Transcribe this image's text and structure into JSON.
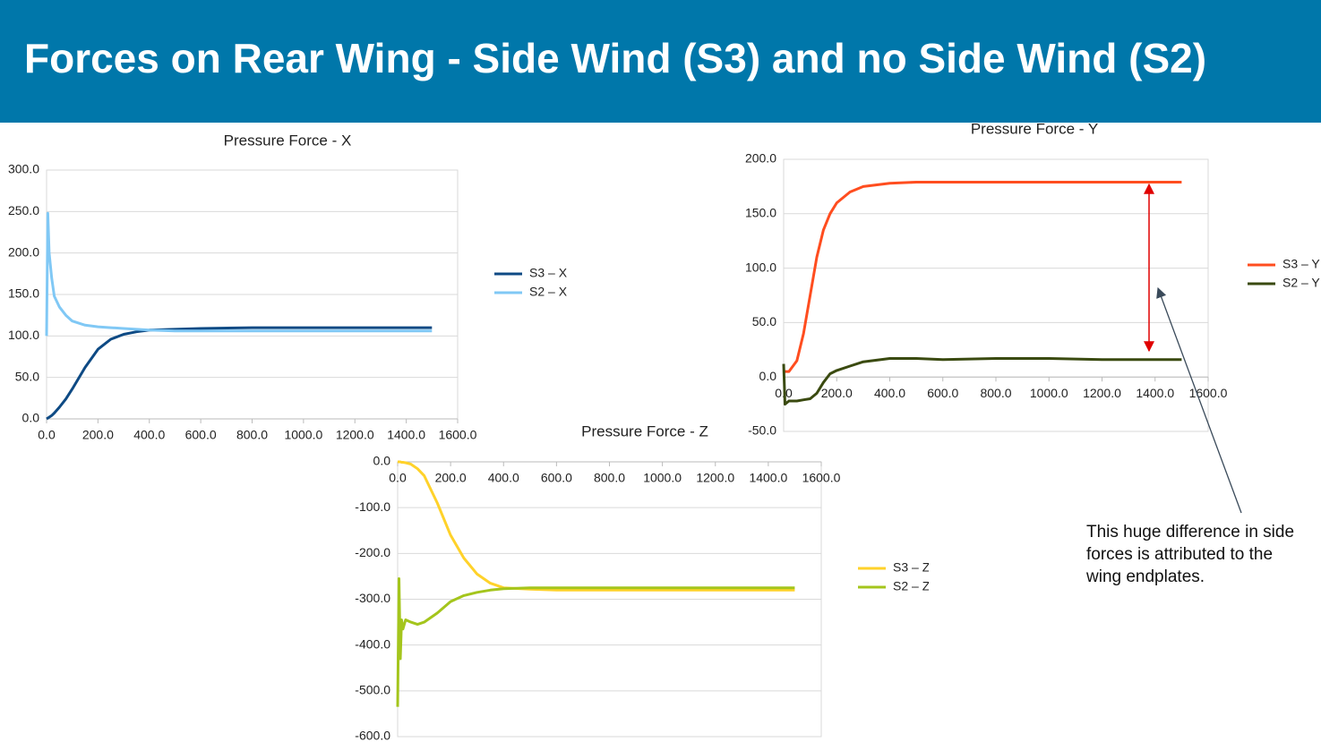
{
  "header": {
    "title": "Forces on Rear Wing - Side Wind (S3) and no Side Wind (S2)"
  },
  "chart_data": [
    {
      "type": "line",
      "title": "Pressure Force - X",
      "x": [
        0,
        5,
        10,
        20,
        30,
        50,
        75,
        100,
        150,
        200,
        250,
        300,
        350,
        400,
        500,
        600,
        800,
        1000,
        1200,
        1500
      ],
      "series": [
        {
          "name": "S3 – X",
          "color": "#0e4a84",
          "values": [
            0,
            1,
            2,
            4,
            7,
            14,
            24,
            36,
            62,
            84,
            96,
            102,
            105,
            107,
            108,
            109,
            110,
            110,
            110,
            110
          ]
        },
        {
          "name": "S2 – X",
          "color": "#80c8f5",
          "values": [
            100,
            248,
            200,
            170,
            148,
            135,
            125,
            118,
            113,
            111,
            110,
            109,
            108,
            107,
            106,
            106,
            106,
            106,
            106,
            106
          ]
        }
      ],
      "xlim": [
        0,
        1600
      ],
      "xticks": [
        {
          "value": 0,
          "label": "0.0"
        },
        {
          "value": 200,
          "label": "200.0"
        },
        {
          "value": 400,
          "label": "400.0"
        },
        {
          "value": 600,
          "label": "600.0"
        },
        {
          "value": 800,
          "label": "800.0"
        },
        {
          "value": 1000,
          "label": "1000.0"
        },
        {
          "value": 1200,
          "label": "1200.0"
        },
        {
          "value": 1400,
          "label": "1400.0"
        },
        {
          "value": 1600,
          "label": "1600.0"
        }
      ],
      "ylim": [
        0,
        300
      ],
      "yticks": [
        {
          "value": 0,
          "label": "0.0"
        },
        {
          "value": 50,
          "label": "50.0"
        },
        {
          "value": 100,
          "label": "100.0"
        },
        {
          "value": 150,
          "label": "150.0"
        },
        {
          "value": 200,
          "label": "200.0"
        },
        {
          "value": 250,
          "label": "250.0"
        },
        {
          "value": 300,
          "label": "300.0"
        }
      ],
      "grid": true,
      "legend": "right"
    },
    {
      "type": "line",
      "title": "Pressure Force - Y",
      "x": [
        0,
        5,
        20,
        50,
        75,
        100,
        125,
        150,
        175,
        200,
        250,
        300,
        400,
        500,
        600,
        800,
        1000,
        1200,
        1500
      ],
      "series": [
        {
          "name": "S3 – Y",
          "color": "#ff4d1f",
          "values": [
            5,
            5,
            5,
            15,
            40,
            75,
            110,
            135,
            150,
            160,
            170,
            175,
            178,
            179,
            179,
            179,
            179,
            179,
            179
          ]
        },
        {
          "name": "S2 – Y",
          "color": "#3a4a10",
          "values": [
            12,
            -25,
            -22,
            -22,
            -21,
            -20,
            -15,
            -5,
            3,
            6,
            10,
            14,
            17,
            17,
            16,
            17,
            17,
            16,
            16
          ]
        }
      ],
      "xlim": [
        0,
        1600
      ],
      "xticks": [
        {
          "value": 0,
          "label": "0.0"
        },
        {
          "value": 200,
          "label": "200.0"
        },
        {
          "value": 400,
          "label": "400.0"
        },
        {
          "value": 600,
          "label": "600.0"
        },
        {
          "value": 800,
          "label": "800.0"
        },
        {
          "value": 1000,
          "label": "1000.0"
        },
        {
          "value": 1200,
          "label": "1200.0"
        },
        {
          "value": 1400,
          "label": "1400.0"
        },
        {
          "value": 1600,
          "label": "1600.0"
        }
      ],
      "ylim": [
        -50,
        200
      ],
      "yticks": [
        {
          "value": -50,
          "label": "-50.0"
        },
        {
          "value": 0,
          "label": "0.0"
        },
        {
          "value": 50,
          "label": "50.0"
        },
        {
          "value": 100,
          "label": "100.0"
        },
        {
          "value": 150,
          "label": "150.0"
        },
        {
          "value": 200,
          "label": "200.0"
        }
      ],
      "grid": true,
      "legend": "right"
    },
    {
      "type": "line",
      "title": "Pressure Force - Z",
      "x": [
        0,
        5,
        10,
        15,
        20,
        30,
        50,
        75,
        100,
        150,
        200,
        250,
        300,
        350,
        400,
        500,
        600,
        800,
        1000,
        1200,
        1500
      ],
      "series": [
        {
          "name": "S3 – Z",
          "color": "#ffd22a",
          "values": [
            0,
            0,
            0,
            -1,
            -1,
            -2,
            -5,
            -15,
            -30,
            -90,
            -160,
            -210,
            -245,
            -265,
            -275,
            -278,
            -280,
            -280,
            -280,
            -280,
            -280
          ]
        },
        {
          "name": "S2 – Z",
          "color": "#a4c51c",
          "values": [
            -535,
            -255,
            -430,
            -345,
            -365,
            -345,
            -350,
            -355,
            -350,
            -330,
            -305,
            -292,
            -285,
            -280,
            -277,
            -275,
            -275,
            -275,
            -275,
            -275,
            -275
          ]
        }
      ],
      "xlim": [
        0,
        1600
      ],
      "xticks": [
        {
          "value": 0,
          "label": "0.0"
        },
        {
          "value": 200,
          "label": "200.0"
        },
        {
          "value": 400,
          "label": "400.0"
        },
        {
          "value": 600,
          "label": "600.0"
        },
        {
          "value": 800,
          "label": "800.0"
        },
        {
          "value": 1000,
          "label": "1000.0"
        },
        {
          "value": 1200,
          "label": "1200.0"
        },
        {
          "value": 1400,
          "label": "1400.0"
        },
        {
          "value": 1600,
          "label": "1600.0"
        }
      ],
      "ylim": [
        -600,
        0
      ],
      "yticks": [
        {
          "value": -600,
          "label": "-600.0"
        },
        {
          "value": -500,
          "label": "-500.0"
        },
        {
          "value": -400,
          "label": "-400.0"
        },
        {
          "value": -300,
          "label": "-300.0"
        },
        {
          "value": -200,
          "label": "-200.0"
        },
        {
          "value": -100,
          "label": "-100.0"
        },
        {
          "value": 0,
          "label": "0.0"
        }
      ],
      "grid": true,
      "legend": "right"
    }
  ],
  "annotation": {
    "lines": [
      "This huge difference in side",
      "forces is attributed to the",
      "wing endplates."
    ]
  }
}
